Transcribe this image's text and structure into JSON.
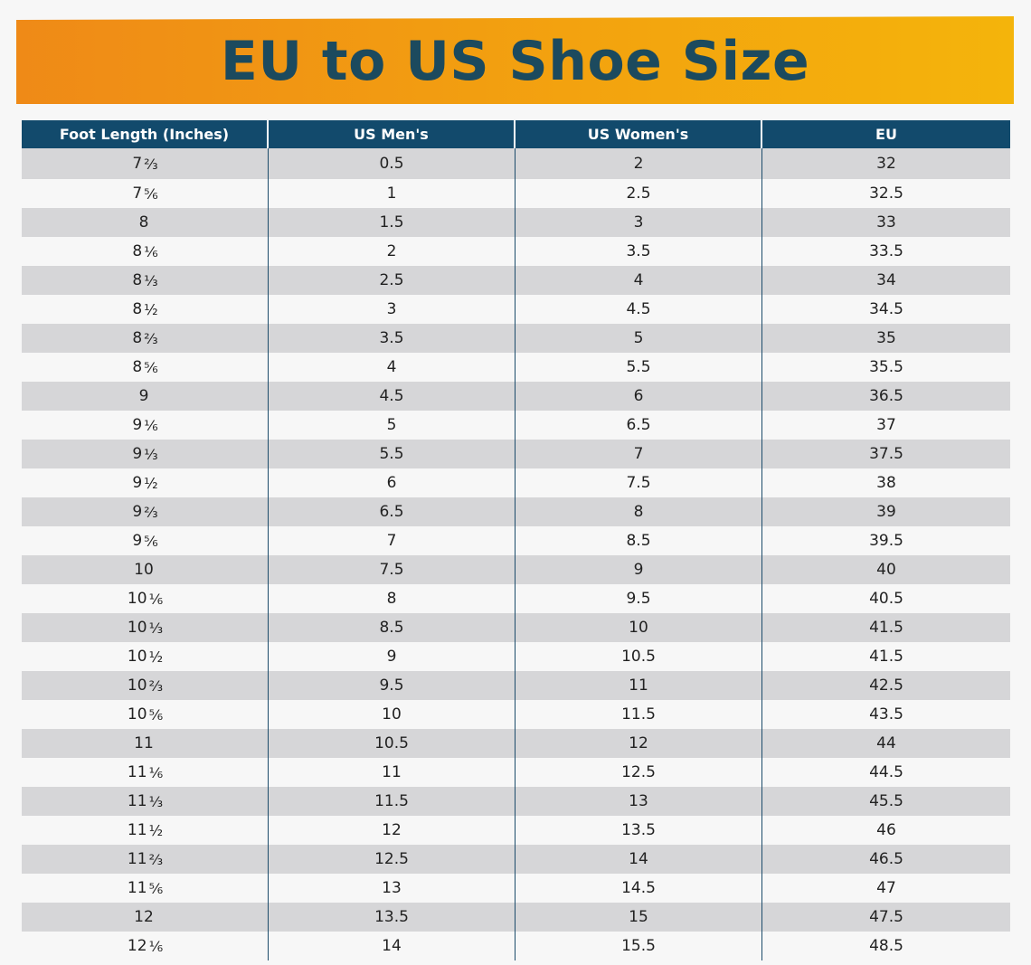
{
  "title": "EU to US Shoe Size",
  "colors": {
    "banner_start": "#ef8a17",
    "banner_end": "#f4b40b",
    "title_text": "#1c4a5e",
    "header_bg": "#124a6c",
    "header_text": "#ffffff",
    "row_shade": "#d6d6d8",
    "row_plain": "#f7f7f7"
  },
  "headers": [
    "Foot Length (Inches)",
    "US Men's",
    "US Women's",
    "EU"
  ],
  "rows": [
    {
      "whole": "7",
      "frac": "⅔",
      "men": "0.5",
      "women": "2",
      "eu": "32"
    },
    {
      "whole": "7",
      "frac": "⅚",
      "men": "1",
      "women": "2.5",
      "eu": "32.5"
    },
    {
      "whole": "8",
      "frac": "",
      "men": "1.5",
      "women": "3",
      "eu": "33"
    },
    {
      "whole": "8",
      "frac": "⅙",
      "men": "2",
      "women": "3.5",
      "eu": "33.5"
    },
    {
      "whole": "8",
      "frac": "⅓",
      "men": "2.5",
      "women": "4",
      "eu": "34"
    },
    {
      "whole": "8",
      "frac": "½",
      "men": "3",
      "women": "4.5",
      "eu": "34.5"
    },
    {
      "whole": "8",
      "frac": "⅔",
      "men": "3.5",
      "women": "5",
      "eu": "35"
    },
    {
      "whole": "8",
      "frac": "⅚",
      "men": "4",
      "women": "5.5",
      "eu": "35.5"
    },
    {
      "whole": "9",
      "frac": "",
      "men": "4.5",
      "women": "6",
      "eu": "36.5"
    },
    {
      "whole": "9",
      "frac": "⅙",
      "men": "5",
      "women": "6.5",
      "eu": "37"
    },
    {
      "whole": "9",
      "frac": "⅓",
      "men": "5.5",
      "women": "7",
      "eu": "37.5"
    },
    {
      "whole": "9",
      "frac": "½",
      "men": "6",
      "women": "7.5",
      "eu": "38"
    },
    {
      "whole": "9",
      "frac": "⅔",
      "men": "6.5",
      "women": "8",
      "eu": "39"
    },
    {
      "whole": "9",
      "frac": "⅚",
      "men": "7",
      "women": "8.5",
      "eu": "39.5"
    },
    {
      "whole": "10",
      "frac": "",
      "men": "7.5",
      "women": "9",
      "eu": "40"
    },
    {
      "whole": "10",
      "frac": "⅙",
      "men": "8",
      "women": "9.5",
      "eu": "40.5"
    },
    {
      "whole": "10",
      "frac": "⅓",
      "men": "8.5",
      "women": "10",
      "eu": "41.5"
    },
    {
      "whole": "10",
      "frac": "½",
      "men": "9",
      "women": "10.5",
      "eu": "41.5"
    },
    {
      "whole": "10",
      "frac": "⅔",
      "men": "9.5",
      "women": "11",
      "eu": "42.5"
    },
    {
      "whole": "10",
      "frac": "⅚",
      "men": "10",
      "women": "11.5",
      "eu": "43.5"
    },
    {
      "whole": "11",
      "frac": "",
      "men": "10.5",
      "women": "12",
      "eu": "44"
    },
    {
      "whole": "11",
      "frac": "⅙",
      "men": "11",
      "women": "12.5",
      "eu": "44.5"
    },
    {
      "whole": "11",
      "frac": "⅓",
      "men": "11.5",
      "women": "13",
      "eu": "45.5"
    },
    {
      "whole": "11",
      "frac": "½",
      "men": "12",
      "women": "13.5",
      "eu": "46"
    },
    {
      "whole": "11",
      "frac": "⅔",
      "men": "12.5",
      "women": "14",
      "eu": "46.5"
    },
    {
      "whole": "11",
      "frac": "⅚",
      "men": "13",
      "women": "14.5",
      "eu": "47"
    },
    {
      "whole": "12",
      "frac": "",
      "men": "13.5",
      "women": "15",
      "eu": "47.5"
    },
    {
      "whole": "12",
      "frac": "⅙",
      "men": "14",
      "women": "15.5",
      "eu": "48.5"
    }
  ]
}
